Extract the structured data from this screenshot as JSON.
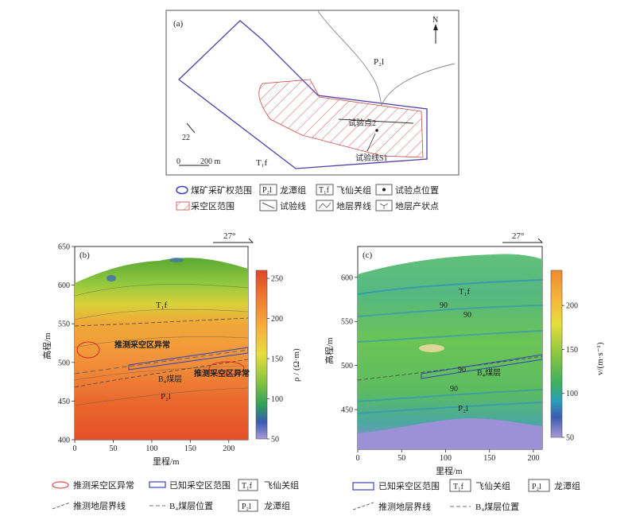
{
  "panel_a": {
    "label": "(a)",
    "north": "N",
    "formation_p2l": "P₂l",
    "formation_t1f": "T₁f",
    "test_point": "试验点2",
    "test_line": "试验线S1",
    "scale_0": "0",
    "scale_200": "200 m",
    "dip_value": "22",
    "legend": [
      {
        "label": "煤矿采矿权范围",
        "icon": "mining-right-ellipse-icon"
      },
      {
        "label": "龙潭组",
        "icon": "P2l-box-icon",
        "box": "P₂l"
      },
      {
        "label": "飞仙关组",
        "icon": "T1f-box-icon",
        "box": "T₁f"
      },
      {
        "label": "试验点位置",
        "icon": "test-point-dot-icon"
      },
      {
        "label": "采空区范围",
        "icon": "goaf-hatch-icon"
      },
      {
        "label": "试验线",
        "icon": "test-line-icon"
      },
      {
        "label": "地层界线",
        "icon": "stratum-boundary-icon"
      },
      {
        "label": "地层产状点",
        "icon": "attitude-point-icon"
      }
    ]
  },
  "panel_b": {
    "label": "(b)",
    "bearing": "27°",
    "t1f": "T₁f",
    "p2l": "P₂l",
    "b4": "B₄煤层",
    "anomaly1": "推测采空区异常",
    "anomaly2": "推测采空区异常",
    "legend": [
      {
        "label": "推测采空区异常",
        "icon": "inferred-goaf-ellipse-icon"
      },
      {
        "label": "已知采空区范围",
        "icon": "known-goaf-rect-icon"
      },
      {
        "label": "飞仙关组",
        "icon": "T1f-box-icon",
        "box": "T₁f"
      },
      {
        "label": "推测地层界线",
        "icon": "inferred-boundary-icon"
      },
      {
        "label": "B₄煤层位置",
        "icon": "coal-seam-dash-icon"
      },
      {
        "label": "龙潭组",
        "icon": "P2l-box-icon",
        "box": "P₂l"
      }
    ]
  },
  "panel_c": {
    "label": "(c)",
    "bearing": "27°",
    "t1f": "T₁f",
    "p2l": "P₂l",
    "b4": "B₄煤层",
    "contour_labels": [
      "90",
      "90",
      "90",
      "90"
    ],
    "legend": [
      {
        "label": "已知采空区范围",
        "icon": "known-goaf-rect-icon"
      },
      {
        "label": "飞仙关组",
        "icon": "T1f-box-icon",
        "box": "T₁f"
      },
      {
        "label": "龙潭组",
        "icon": "P2l-box-icon",
        "box": "P₂l"
      },
      {
        "label": "推测地层界线",
        "icon": "inferred-boundary-icon"
      },
      {
        "label": "B₄煤层位置",
        "icon": "coal-seam-dash-icon"
      }
    ]
  },
  "chart_data": [
    {
      "type": "heatmap",
      "panel": "(b)",
      "xlabel": "里程/m",
      "ylabel": "高程/m",
      "colorbar_label": "ρ / (Ω·m)",
      "xlim": [
        0,
        225
      ],
      "ylim": [
        400,
        650
      ],
      "x_ticks": [
        0,
        50,
        100,
        150,
        200
      ],
      "y_ticks": [
        400,
        450,
        500,
        550,
        600,
        650
      ],
      "colorbar_range": [
        50,
        260
      ],
      "colorbar_ticks": [
        50,
        100,
        150,
        200,
        250
      ]
    },
    {
      "type": "heatmap",
      "panel": "(c)",
      "xlabel": "里程/m",
      "ylabel": "高程/m",
      "colorbar_label": "v/(m·s⁻¹)",
      "xlim": [
        0,
        210
      ],
      "ylim": [
        405,
        635
      ],
      "x_ticks": [
        0,
        50,
        100,
        150,
        200
      ],
      "y_ticks": [
        450,
        500,
        550,
        600
      ],
      "colorbar_range": [
        50,
        240
      ],
      "colorbar_ticks": [
        50,
        100,
        150,
        200
      ]
    }
  ]
}
